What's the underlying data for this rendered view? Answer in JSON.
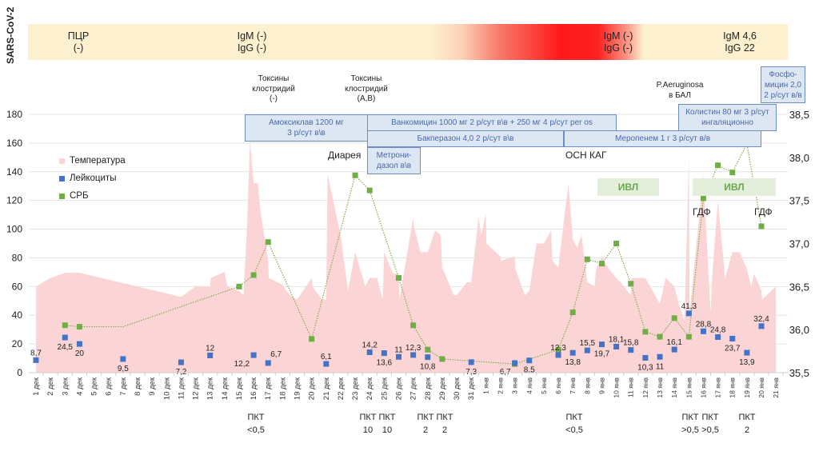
{
  "serology": {
    "axis_label": "SARS-CoV-2",
    "entries": [
      {
        "text": "ПЦР\n(-)"
      },
      {
        "text": "IgM (-)\nIgG (-)"
      },
      {
        "text": "IgM (-)\nIgG (-)"
      },
      {
        "text": "IgM 4,6\nIgG 22"
      }
    ]
  },
  "notes": [
    {
      "text": "Токсины\nклостридий\n(-)"
    },
    {
      "text": "Токсины\nклостридий\n(A,B)"
    },
    {
      "text": "P.Aeruginosa\nв БАЛ"
    }
  ],
  "drugs": [
    {
      "text": "Амоксиклав 1200 мг\n3 р/сут в\\в"
    },
    {
      "text": "Ванкомицин 1000 мг 2 р/сут в\\в + 250 мг 4 р/сут per os"
    },
    {
      "text": "Бакперазон 4,0 2 р/сут в\\в"
    },
    {
      "text": "Метрони-\nдазол в\\в"
    },
    {
      "text": "Меропенем 1 г 3 р/сут в/в"
    },
    {
      "text": "Колистин  80 мг 3 р/сут\nингаляционно"
    },
    {
      "text": "Фосфо-\nмицин 2,0\n2 р/сут в/в"
    }
  ],
  "events": [
    {
      "text": "Диарея"
    },
    {
      "text": "ОСН КАГ"
    },
    {
      "text": "ГДФ"
    },
    {
      "text": "ГДФ"
    }
  ],
  "ivl": [
    {
      "text": "ИВЛ"
    },
    {
      "text": "ИВЛ"
    }
  ],
  "pkt": [
    {
      "text": "ПКТ\n<0,5"
    },
    {
      "text": "ПКТ\n10"
    },
    {
      "text": "ПКТ\n10"
    },
    {
      "text": "ПКТ\n2"
    },
    {
      "text": "ПКТ\n2"
    },
    {
      "text": "ПКТ\n<0,5"
    },
    {
      "text": "ПКТ\n>0,5"
    },
    {
      "text": "ПКТ\n>0,5"
    },
    {
      "text": "ПКТ\n2"
    }
  ],
  "colors": {
    "temperature": "#fbd5d5",
    "leukocytes": "#4472c4",
    "crp": "#70ad47",
    "crp_line": "#8aa84f",
    "grid": "#e4e4e4",
    "drug_fill": "#dde6f3",
    "drug_border": "#6d8cc0"
  },
  "chart_data": {
    "type": "line",
    "title": "",
    "categories": [
      "1 дек",
      "2 дек",
      "3 дек",
      "4 дек",
      "5 дек",
      "6 дек",
      "7 дек",
      "8 дек",
      "9 дек",
      "10 дек",
      "11 дек",
      "12 дек",
      "13 дек",
      "14 дек",
      "15 дек",
      "16 дек",
      "17 дек",
      "18 дек",
      "19 дек",
      "20 дек",
      "21 дек",
      "22 дек",
      "23 дек",
      "24 дек",
      "25 дек",
      "26 дек",
      "27 дек",
      "28 дек",
      "29 дек",
      "30 дек",
      "31 дек",
      "1 янв",
      "2 янв",
      "3 янв",
      "4 янв",
      "5 янв",
      "6 янв",
      "7 янв",
      "8 янв",
      "9 янв",
      "10 янв",
      "11 янв",
      "12 янв",
      "13 янв",
      "14 янв",
      "15 янв",
      "16 янв",
      "17 янв",
      "18 янв",
      "19 янв",
      "20 янв",
      "21 янв"
    ],
    "left_axis": {
      "ylim": [
        0,
        180
      ],
      "ticks": [
        "0",
        "20",
        "40",
        "60",
        "80",
        "100",
        "120",
        "140",
        "160",
        "180"
      ]
    },
    "right_axis": {
      "ylim": [
        35.5,
        38.5
      ],
      "ticks": [
        "35,5",
        "36,0",
        "36,5",
        "37,0",
        "37,5",
        "38,0",
        "38,5"
      ]
    },
    "grid": true,
    "legend": {
      "placement": "top-left",
      "entries": [
        "Температура",
        "Лейкоциты",
        "СРБ"
      ]
    },
    "series": [
      {
        "name": "Температура",
        "type": "area",
        "axis": "right",
        "x": [
          0,
          1,
          2,
          3,
          4,
          5,
          6,
          7,
          8,
          9,
          10,
          11,
          12,
          12.05,
          13,
          13.2,
          14,
          14.3,
          14.55,
          14.75,
          15,
          15.3,
          15.45,
          16,
          16.05,
          17,
          17.05,
          17.5,
          18,
          19,
          19.05,
          19.7,
          20,
          20.1,
          21,
          21.5,
          22,
          22.7,
          23,
          23.5,
          23.9,
          24,
          24.6,
          25,
          25.05,
          26,
          26.05,
          26.5,
          27,
          27.5,
          27.9,
          28,
          28.05,
          28.8,
          29,
          29.7,
          30,
          30.5,
          30.7,
          31,
          31.05,
          32,
          32.05,
          33,
          33.05,
          33.7,
          34,
          34.5,
          35,
          35.5,
          35.6,
          36,
          36.7,
          37,
          37.3,
          37.6,
          38,
          38.5,
          38.6,
          39,
          39.5,
          40,
          40.3,
          41,
          41.05,
          42,
          42.5,
          43,
          43.4,
          44,
          44.3,
          44.7,
          45,
          45.05,
          45.4,
          46,
          46.5,
          46.6,
          47,
          47.5,
          48,
          48.5,
          49,
          49.3,
          49.5,
          50,
          50.05,
          51
        ],
        "values": [
          36.5,
          36.6,
          36.66,
          36.66,
          36.62,
          36.58,
          36.54,
          36.5,
          36.46,
          36.42,
          36.38,
          36.5,
          36.5,
          36.6,
          36.67,
          36.5,
          36.45,
          36.4,
          37.2,
          38.2,
          37.7,
          37.7,
          37.4,
          36.8,
          36.6,
          36.52,
          36.5,
          36.4,
          36.35,
          36.6,
          36.5,
          36.35,
          36.35,
          37.8,
          37.1,
          36.45,
          36.9,
          36.5,
          36.6,
          36.6,
          36.35,
          36.9,
          36.65,
          36.65,
          36.35,
          37.3,
          37.2,
          36.9,
          36.9,
          37.15,
          37.1,
          36.7,
          36.7,
          36.4,
          36.4,
          36.55,
          36.55,
          37.3,
          37.1,
          37.35,
          37.0,
          36.85,
          36.8,
          36.85,
          36.7,
          36.4,
          36.45,
          37.0,
          37.0,
          37.15,
          36.8,
          36.72,
          37.7,
          37.05,
          36.95,
          37.1,
          36.55,
          36.5,
          36.7,
          36.85,
          36.7,
          36.6,
          36.55,
          36.4,
          36.6,
          36.6,
          36.45,
          36.3,
          36.6,
          36.5,
          36.3,
          36.1,
          38.0,
          36.2,
          36.8,
          37.8,
          36.2,
          36.6,
          37.5,
          36.6,
          36.9,
          36.9,
          36.7,
          36.5,
          36.65,
          36.45,
          36.35,
          36.5
        ]
      },
      {
        "name": "Лейкоциты",
        "type": "scatter",
        "axis": "left",
        "points": [
          {
            "x": "1 дек",
            "y": 8.7,
            "label": "8,7"
          },
          {
            "x": "3 дек",
            "y": 24.5,
            "label": "24,5"
          },
          {
            "x": "4 дек",
            "y": 20,
            "label": "20"
          },
          {
            "x": "7 дек",
            "y": 9.5,
            "label": "9,5"
          },
          {
            "x": "11 дек",
            "y": 7.2,
            "label": "7,2"
          },
          {
            "x": "13 дек",
            "y": 12,
            "label": "12"
          },
          {
            "x": "16 дек",
            "y": 12.2,
            "label": "12,2"
          },
          {
            "x": "17 дек",
            "y": 6.7,
            "label": "6,7"
          },
          {
            "x": "21 дек",
            "y": 6.1,
            "label": "6,1"
          },
          {
            "x": "24 дек",
            "y": 14.2,
            "label": "14,2"
          },
          {
            "x": "25 дек",
            "y": 13.6,
            "label": "13,6"
          },
          {
            "x": "26 дек",
            "y": 11,
            "label": "11"
          },
          {
            "x": "27 дек",
            "y": 12.3,
            "label": "12,3"
          },
          {
            "x": "28 дек",
            "y": 10.8,
            "label": "10,8"
          },
          {
            "x": "31 дек",
            "y": 7.3,
            "label": "7,3"
          },
          {
            "x": "3 янв",
            "y": 6.7,
            "label": "6,7"
          },
          {
            "x": "4 янв",
            "y": 8.5,
            "label": "8,5"
          },
          {
            "x": "6 янв",
            "y": 12.3,
            "label": "12,3"
          },
          {
            "x": "7 янв",
            "y": 13.8,
            "label": "13,8"
          },
          {
            "x": "8 янв",
            "y": 15.5,
            "label": "15,5"
          },
          {
            "x": "9 янв",
            "y": 19.7,
            "label": "19,7"
          },
          {
            "x": "10 янв",
            "y": 18.1,
            "label": "18,1"
          },
          {
            "x": "11 янв",
            "y": 15.8,
            "label": "15,8"
          },
          {
            "x": "12 янв",
            "y": 10.3,
            "label": "10,3"
          },
          {
            "x": "13 янв",
            "y": 11,
            "label": "11"
          },
          {
            "x": "14 янв",
            "y": 16.1,
            "label": "16,1"
          },
          {
            "x": "15 янв",
            "y": 41.3,
            "label": "41,3"
          },
          {
            "x": "16 янв",
            "y": 28.8,
            "label": "28,8"
          },
          {
            "x": "17 янв",
            "y": 24.8,
            "label": "24,8"
          },
          {
            "x": "18 янв",
            "y": 23.7,
            "label": "23,7"
          },
          {
            "x": "19 янв",
            "y": 13.9,
            "label": "13,9"
          },
          {
            "x": "20 янв",
            "y": 32.4,
            "label": "32,4"
          }
        ]
      },
      {
        "name": "СРБ",
        "type": "line",
        "axis": "left",
        "points": [
          {
            "x": "3 дек",
            "y": 33,
            "marker": true
          },
          {
            "x": "4 дек",
            "y": 32,
            "marker": true
          },
          {
            "x": "7 дек",
            "y": 32,
            "marker": false
          },
          {
            "x": "15 дек",
            "y": 60,
            "marker": true
          },
          {
            "x": "16 дек",
            "y": 68,
            "marker": true
          },
          {
            "x": "17 дек",
            "y": 91,
            "marker": true
          },
          {
            "x": "20 дек",
            "y": 23.5,
            "marker": true
          },
          {
            "x": "23 дек",
            "y": 137.5,
            "marker": true
          },
          {
            "x": "24 дек",
            "y": 127,
            "marker": true
          },
          {
            "x": "26 дек",
            "y": 66,
            "marker": true
          },
          {
            "x": "27 дек",
            "y": 33,
            "marker": true
          },
          {
            "x": "28 дек",
            "y": 16,
            "marker": true
          },
          {
            "x": "29 дек",
            "y": 9.5,
            "marker": true
          },
          {
            "x": "3 янв",
            "y": 6,
            "marker": true
          },
          {
            "x": "6 янв",
            "y": 16,
            "marker": true
          },
          {
            "x": "7 янв",
            "y": 42,
            "marker": true
          },
          {
            "x": "8 янв",
            "y": 79,
            "marker": true
          },
          {
            "x": "9 янв",
            "y": 76,
            "marker": true
          },
          {
            "x": "10 янв",
            "y": 90,
            "marker": true
          },
          {
            "x": "11 янв",
            "y": 62,
            "marker": true
          },
          {
            "x": "12 янв",
            "y": 28.5,
            "marker": true
          },
          {
            "x": "13 янв",
            "y": 25,
            "marker": true
          },
          {
            "x": "14 янв",
            "y": 38,
            "marker": true
          },
          {
            "x": "15 янв",
            "y": 25,
            "marker": true
          },
          {
            "x": "16 янв",
            "y": 121.5,
            "marker": true
          },
          {
            "x": "17 янв",
            "y": 144.5,
            "marker": true
          },
          {
            "x": "18 янв",
            "y": 139.5,
            "marker": true
          },
          {
            "x": "19 янв",
            "y": 159.5,
            "marker": true
          },
          {
            "x": "20 янв",
            "y": 102,
            "marker": true
          }
        ]
      }
    ]
  }
}
